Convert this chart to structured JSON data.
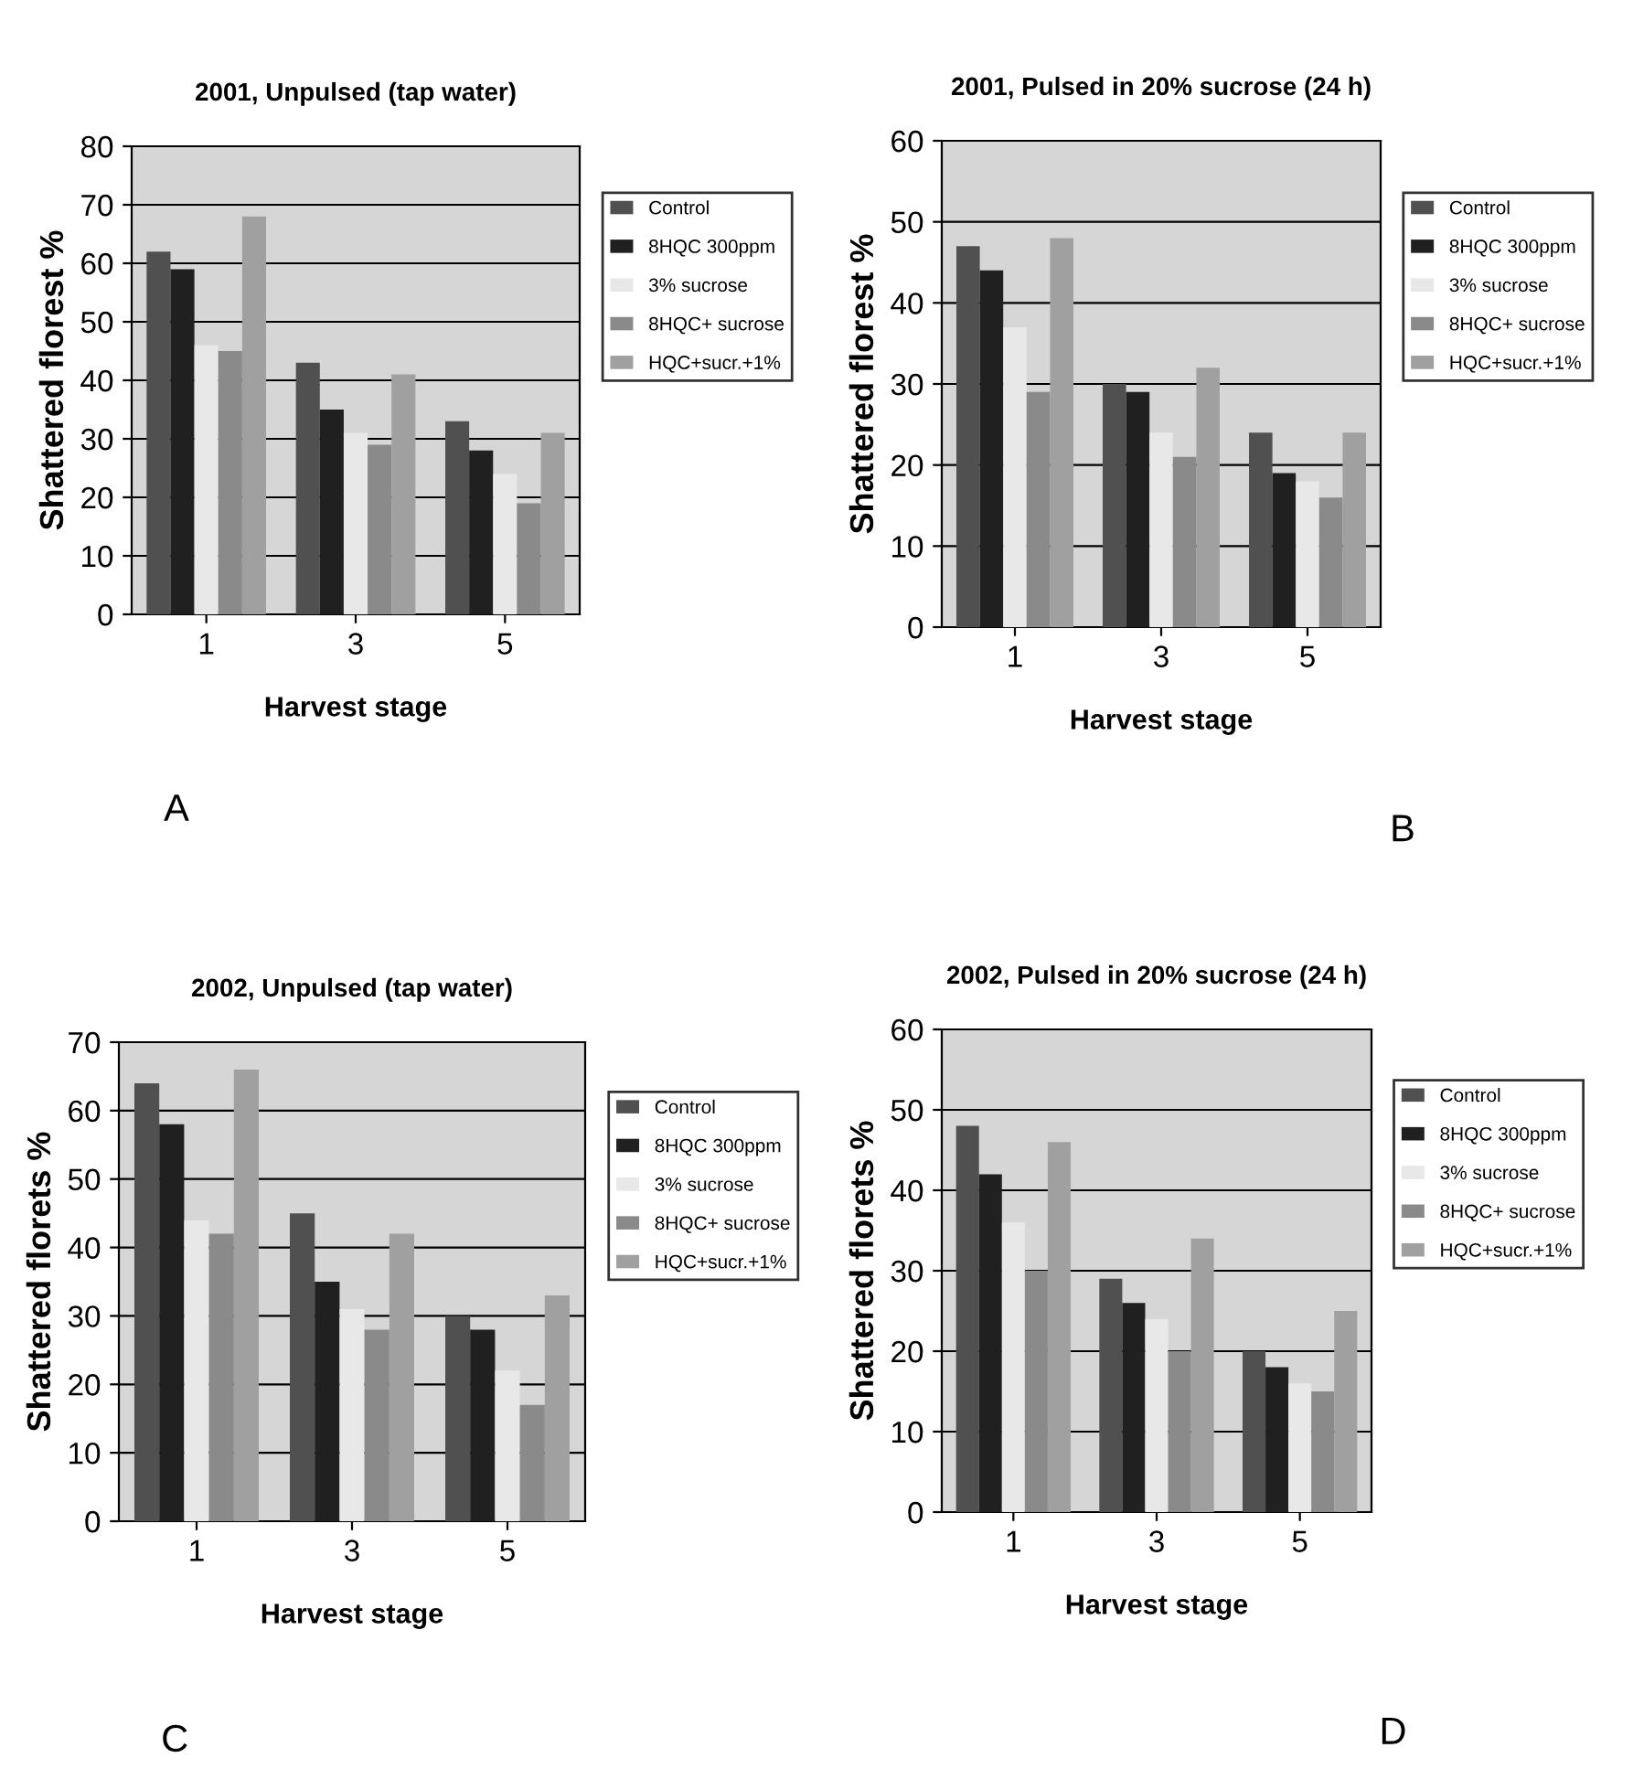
{
  "chart_data": [
    {
      "type": "bar",
      "title": "2001, Unpulsed (tap water)",
      "xlabel": "Harvest stage",
      "ylabel": "Shattered florest %",
      "categories": [
        "1",
        "3",
        "5"
      ],
      "ylim": [
        0,
        80
      ],
      "yticks": [
        0,
        10,
        20,
        30,
        40,
        50,
        60,
        70,
        80
      ],
      "grid": "y",
      "legend": "right",
      "annotations": [
        "A"
      ],
      "series": [
        {
          "name": "Control",
          "color": "#505050",
          "values": [
            62,
            43,
            33
          ]
        },
        {
          "name": "8HQC 300ppm",
          "color": "#202020",
          "values": [
            59,
            35,
            28
          ]
        },
        {
          "name": "3% sucrose",
          "color": "#e8e8e8",
          "values": [
            46,
            31,
            24
          ]
        },
        {
          "name": "8HQC+ sucrose",
          "color": "#8a8a8a",
          "values": [
            45,
            29,
            19
          ]
        },
        {
          "name": "HQC+sucr.+1%",
          "color": "#a0a0a0",
          "values": [
            68,
            41,
            31
          ]
        }
      ]
    },
    {
      "type": "bar",
      "title": "2001, Pulsed in 20% sucrose (24 h)",
      "xlabel": "Harvest stage",
      "ylabel": "Shattered florest %",
      "categories": [
        "1",
        "3",
        "5"
      ],
      "ylim": [
        0,
        60
      ],
      "yticks": [
        0,
        10,
        20,
        30,
        40,
        50,
        60
      ],
      "grid": "y",
      "legend": "right",
      "annotations": [
        "B"
      ],
      "series": [
        {
          "name": "Control",
          "color": "#505050",
          "values": [
            47,
            30,
            24
          ]
        },
        {
          "name": "8HQC 300ppm",
          "color": "#202020",
          "values": [
            44,
            29,
            19
          ]
        },
        {
          "name": "3% sucrose",
          "color": "#e8e8e8",
          "values": [
            37,
            24,
            18
          ]
        },
        {
          "name": "8HQC+ sucrose",
          "color": "#8a8a8a",
          "values": [
            29,
            21,
            16
          ]
        },
        {
          "name": "HQC+sucr.+1%",
          "color": "#a0a0a0",
          "values": [
            48,
            32,
            24
          ]
        }
      ]
    },
    {
      "type": "bar",
      "title": "2002, Unpulsed (tap water)",
      "xlabel": "Harvest stage",
      "ylabel": "Shattered florets %",
      "categories": [
        "1",
        "3",
        "5"
      ],
      "ylim": [
        0,
        70
      ],
      "yticks": [
        0,
        10,
        20,
        30,
        40,
        50,
        60,
        70
      ],
      "grid": "y",
      "legend": "right",
      "annotations": [
        "C"
      ],
      "series": [
        {
          "name": "Control",
          "color": "#505050",
          "values": [
            64,
            45,
            30
          ]
        },
        {
          "name": "8HQC 300ppm",
          "color": "#202020",
          "values": [
            58,
            35,
            28
          ]
        },
        {
          "name": "3% sucrose",
          "color": "#e8e8e8",
          "values": [
            44,
            31,
            22
          ]
        },
        {
          "name": "8HQC+ sucrose",
          "color": "#8a8a8a",
          "values": [
            42,
            28,
            17
          ]
        },
        {
          "name": "HQC+sucr.+1%",
          "color": "#a0a0a0",
          "values": [
            66,
            42,
            33
          ]
        }
      ]
    },
    {
      "type": "bar",
      "title": "2002, Pulsed in 20% sucrose (24 h)",
      "xlabel": "Harvest stage",
      "ylabel": "Shattered florets %",
      "categories": [
        "1",
        "3",
        "5"
      ],
      "ylim": [
        0,
        60
      ],
      "yticks": [
        0,
        10,
        20,
        30,
        40,
        50,
        60
      ],
      "grid": "y",
      "legend": "right",
      "annotations": [
        "D"
      ],
      "series": [
        {
          "name": "Control",
          "color": "#505050",
          "values": [
            48,
            29,
            20
          ]
        },
        {
          "name": "8HQC 300ppm",
          "color": "#202020",
          "values": [
            42,
            26,
            18
          ]
        },
        {
          "name": "3% sucrose",
          "color": "#e8e8e8",
          "values": [
            36,
            24,
            16
          ]
        },
        {
          "name": "8HQC+ sucrose",
          "color": "#8a8a8a",
          "values": [
            30,
            20,
            15
          ]
        },
        {
          "name": "HQC+sucr.+1%",
          "color": "#a0a0a0",
          "values": [
            46,
            34,
            25
          ]
        }
      ]
    }
  ]
}
